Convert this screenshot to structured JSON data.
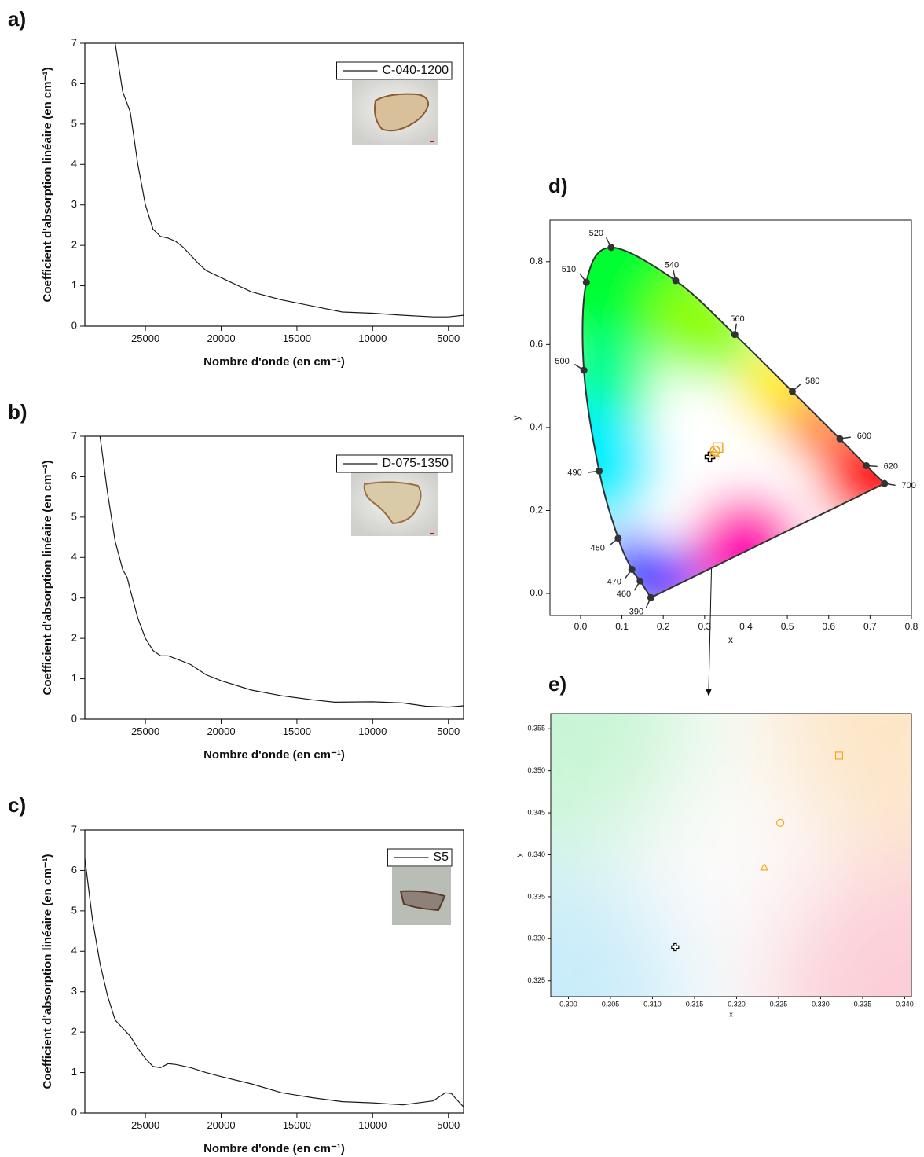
{
  "chart_data": [
    {
      "type": "line",
      "panel_label": "a)",
      "xlabel": "Nombre d'onde (en cm⁻¹)",
      "ylabel": "Coefficient d'absorption linéaire (en cm⁻¹)",
      "xlim": [
        29000,
        4000
      ],
      "xticks": [
        25000,
        20000,
        15000,
        10000,
        5000
      ],
      "ylim": [
        0,
        7
      ],
      "yticks": [
        0,
        1,
        2,
        3,
        4,
        5,
        6,
        7
      ],
      "legend": "upper right",
      "x": [
        27000,
        26500,
        26000,
        25500,
        25000,
        24500,
        24000,
        23500,
        23000,
        22500,
        22000,
        21500,
        21000,
        20000,
        18000,
        16000,
        14000,
        12000,
        10000,
        8000,
        6000,
        5000,
        4000
      ],
      "series": [
        {
          "name": "C-040-1200",
          "color": "#1a1a1a",
          "values": [
            7,
            5.8,
            5.3,
            4.0,
            3.0,
            2.4,
            2.22,
            2.18,
            2.1,
            1.95,
            1.75,
            1.55,
            1.38,
            1.2,
            0.85,
            0.65,
            0.5,
            0.35,
            0.32,
            0.27,
            0.23,
            0.23,
            0.27
          ]
        }
      ]
    },
    {
      "type": "line",
      "panel_label": "b)",
      "xlabel": "Nombre d'onde (en cm⁻¹)",
      "ylabel": "Coefficient d'absorption linéaire (en cm⁻¹)",
      "xlim": [
        29000,
        4000
      ],
      "xticks": [
        25000,
        20000,
        15000,
        10000,
        5000
      ],
      "ylim": [
        0,
        7
      ],
      "yticks": [
        0,
        1,
        2,
        3,
        4,
        5,
        6,
        7
      ],
      "legend": "upper right",
      "x": [
        28000,
        27500,
        27000,
        26500,
        26200,
        26000,
        25500,
        25000,
        24500,
        24000,
        23500,
        23000,
        22000,
        21000,
        20000,
        18000,
        16000,
        14000,
        12500,
        10000,
        8000,
        6500,
        5000,
        4000
      ],
      "series": [
        {
          "name": "D-075-1350",
          "color": "#1a1a1a",
          "values": [
            7,
            5.6,
            4.4,
            3.7,
            3.5,
            3.2,
            2.5,
            2.0,
            1.7,
            1.57,
            1.57,
            1.5,
            1.35,
            1.1,
            0.95,
            0.72,
            0.58,
            0.48,
            0.42,
            0.43,
            0.4,
            0.32,
            0.3,
            0.33
          ]
        }
      ]
    },
    {
      "type": "line",
      "panel_label": "c)",
      "xlabel": "Nombre d'onde (en cm⁻¹)",
      "ylabel": "Coefficient d'absorption linéaire (en cm⁻¹)",
      "xlim": [
        29000,
        4000
      ],
      "xticks": [
        25000,
        20000,
        15000,
        10000,
        5000
      ],
      "ylim": [
        0,
        7
      ],
      "yticks": [
        0,
        1,
        2,
        3,
        4,
        5,
        6,
        7
      ],
      "legend": "upper right",
      "x": [
        29000,
        28500,
        28000,
        27500,
        27000,
        26500,
        26000,
        25500,
        25000,
        24500,
        24000,
        23500,
        23000,
        22000,
        21000,
        20000,
        18000,
        16000,
        14000,
        12000,
        10000,
        8000,
        6000,
        5200,
        4800,
        4500,
        4000
      ],
      "series": [
        {
          "name": "S5",
          "color": "#1a1a1a",
          "values": [
            6.3,
            4.8,
            3.7,
            2.9,
            2.3,
            2.1,
            1.9,
            1.6,
            1.35,
            1.15,
            1.12,
            1.22,
            1.2,
            1.12,
            1.0,
            0.9,
            0.72,
            0.5,
            0.38,
            0.28,
            0.25,
            0.2,
            0.3,
            0.5,
            0.48,
            0.35,
            0.15
          ]
        }
      ]
    },
    {
      "type": "chromaticity",
      "panel_label": "d)",
      "xlabel": "x",
      "ylabel": "y",
      "xlim": [
        -0.074,
        0.8
      ],
      "xticks": [
        {
          "value": 0,
          "label": "0.0"
        },
        0.1,
        0.2,
        0.3,
        0.4,
        0.5,
        0.6,
        0.7,
        0.8
      ],
      "ylim": [
        -0.053,
        0.9
      ],
      "yticks": [
        {
          "value": 0,
          "label": "0.0"
        },
        0.2,
        0.4,
        0.6,
        0.8
      ],
      "locus": [
        {
          "label": "390",
          "x": 0.17,
          "y": -0.01
        },
        {
          "label": "460",
          "x": 0.144,
          "y": 0.03
        },
        {
          "label": "470",
          "x": 0.124,
          "y": 0.058
        },
        {
          "label": "480",
          "x": 0.091,
          "y": 0.133
        },
        {
          "label": "490",
          "x": 0.045,
          "y": 0.295
        },
        {
          "label": "500",
          "x": 0.008,
          "y": 0.538
        },
        {
          "label": "510",
          "x": 0.014,
          "y": 0.75
        },
        {
          "label": "520",
          "x": 0.074,
          "y": 0.834
        },
        {
          "label": "540",
          "x": 0.23,
          "y": 0.754
        },
        {
          "label": "560",
          "x": 0.373,
          "y": 0.624
        },
        {
          "label": "580",
          "x": 0.512,
          "y": 0.487
        },
        {
          "label": "600",
          "x": 0.627,
          "y": 0.373
        },
        {
          "label": "620",
          "x": 0.691,
          "y": 0.308
        },
        {
          "label": "700",
          "x": 0.735,
          "y": 0.265
        }
      ],
      "samples": [
        {
          "x": 0.3127,
          "y": 0.329,
          "marker": "plus",
          "color": "#000000"
        },
        {
          "x": 0.3233,
          "y": 0.3385,
          "marker": "triangle",
          "color": "#f5a623"
        },
        {
          "x": 0.3252,
          "y": 0.3438,
          "marker": "circle",
          "color": "#f5a623"
        },
        {
          "x": 0.3322,
          "y": 0.3518,
          "marker": "square",
          "color": "#f5a623"
        }
      ]
    },
    {
      "type": "zoom",
      "panel_label": "e)",
      "xlabel": "x",
      "ylabel": "y",
      "xlim": [
        0.2979,
        0.3408
      ],
      "xticks": [
        {
          "value": 0.3,
          "label": "0.300"
        },
        0.305,
        {
          "value": 0.31,
          "label": "0.310"
        },
        0.315,
        {
          "value": 0.32,
          "label": "0.320"
        },
        0.325,
        {
          "value": 0.33,
          "label": "0.330"
        },
        0.335,
        {
          "value": 0.34,
          "label": "0.340"
        }
      ],
      "ylim": [
        0.3231,
        0.3568
      ],
      "yticks": [
        0.325,
        {
          "value": 0.33,
          "label": "0.330"
        },
        0.335,
        {
          "value": 0.34,
          "label": "0.340"
        },
        0.345,
        {
          "value": 0.35,
          "label": "0.350"
        },
        0.355
      ],
      "samples": [
        {
          "x": 0.3127,
          "y": 0.329,
          "marker": "plus",
          "color": "#000000"
        },
        {
          "x": 0.3233,
          "y": 0.3385,
          "marker": "triangle",
          "color": "#f5a623"
        },
        {
          "x": 0.3252,
          "y": 0.3438,
          "marker": "circle",
          "color": "#f5a623"
        },
        {
          "x": 0.3322,
          "y": 0.3518,
          "marker": "square",
          "color": "#f5a623"
        }
      ]
    }
  ]
}
